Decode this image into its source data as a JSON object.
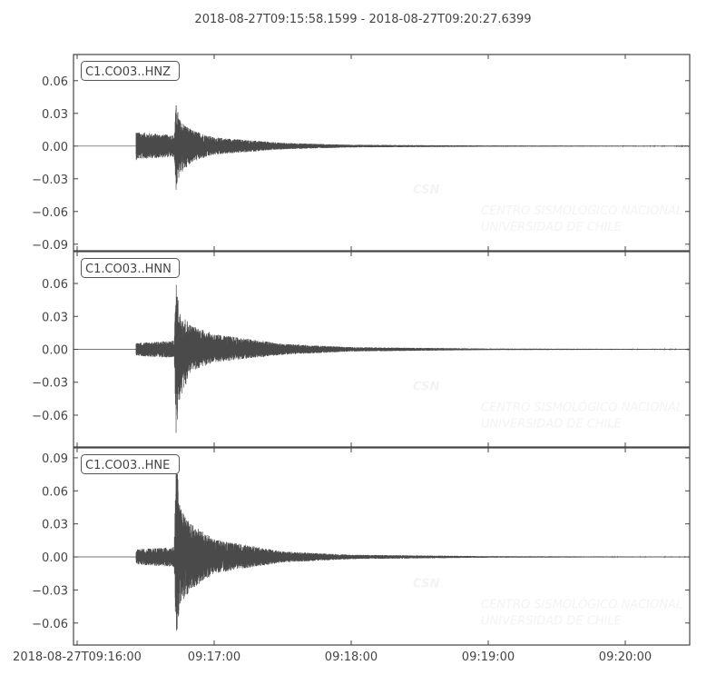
{
  "chart_data": {
    "type": "line",
    "title": "2018-08-27T09:15:58.1599  -  2018-08-27T09:20:27.6399",
    "start_time": "2018-08-27T09:15:58.1599",
    "end_time": "2018-08-27T09:20:27.6399",
    "x_tick_labels": [
      "2018-08-27T09:16:00",
      "09:17:00",
      "09:18:00",
      "09:19:00",
      "09:20:00"
    ],
    "x_tick_seconds_after_0916": [
      0,
      60,
      120,
      180,
      240
    ],
    "grid": false,
    "line_color": "#4a4a4a",
    "watermark": {
      "logo": "CSN",
      "line1": "CENTRO SISMOLÓGICO NACIONAL",
      "line2": "UNIVERSIDAD DE CHILE"
    },
    "series": [
      {
        "name": "C1.CO03..HNZ",
        "ylim": [
          -0.096,
          0.084
        ],
        "y_tick_labels": [
          "0.06",
          "0.03",
          "0.00",
          "−0.03",
          "−0.06",
          "−0.09"
        ],
        "y_ticks": [
          0.06,
          0.03,
          0,
          -0.03,
          -0.06,
          -0.09
        ],
        "envelope_seconds_after_0916": [
          25.8,
          26.5,
          42.5,
          43.3,
          45,
          50,
          60,
          90,
          120,
          180,
          267.6
        ],
        "envelope_max": [
          0.015,
          0.013,
          0.01,
          0.039,
          0.024,
          0.015,
          0.008,
          0.003,
          0.0012,
          0.0006,
          0.0003
        ],
        "envelope_min": [
          -0.013,
          -0.012,
          -0.01,
          -0.041,
          -0.026,
          -0.015,
          -0.008,
          -0.003,
          -0.0012,
          -0.0006,
          -0.0003
        ]
      },
      {
        "name": "C1.CO03..HNN",
        "ylim": [
          -0.089,
          0.089
        ],
        "y_tick_labels": [
          "0.06",
          "0.03",
          "0.00",
          "−0.03",
          "−0.06"
        ],
        "y_ticks": [
          0.06,
          0.03,
          0,
          -0.03,
          -0.06
        ],
        "envelope_seconds_after_0916": [
          25.8,
          26.5,
          42.5,
          43.3,
          45,
          50,
          60,
          90,
          120,
          180,
          267.6
        ],
        "envelope_max": [
          0.007,
          0.006,
          0.008,
          0.061,
          0.034,
          0.022,
          0.014,
          0.005,
          0.002,
          0.0007,
          0.0003
        ],
        "envelope_min": [
          -0.006,
          -0.006,
          -0.008,
          -0.077,
          -0.046,
          -0.02,
          -0.012,
          -0.005,
          -0.002,
          -0.0007,
          -0.0003
        ]
      },
      {
        "name": "C1.CO03..HNE",
        "ylim": [
          -0.08,
          0.099
        ],
        "y_tick_labels": [
          "0.09",
          "0.06",
          "0.03",
          "0.00",
          "−0.03",
          "−0.06"
        ],
        "y_ticks": [
          0.09,
          0.06,
          0.03,
          0,
          -0.03,
          -0.06
        ],
        "envelope_seconds_after_0916": [
          25.8,
          26.5,
          42.5,
          43.3,
          45,
          50,
          60,
          90,
          120,
          180,
          267.6
        ],
        "envelope_max": [
          0.008,
          0.007,
          0.009,
          0.097,
          0.045,
          0.03,
          0.016,
          0.005,
          0.002,
          0.0007,
          0.0003
        ],
        "envelope_min": [
          -0.007,
          -0.007,
          -0.009,
          -0.075,
          -0.045,
          -0.03,
          -0.015,
          -0.005,
          -0.002,
          -0.0007,
          -0.0003
        ]
      }
    ]
  }
}
